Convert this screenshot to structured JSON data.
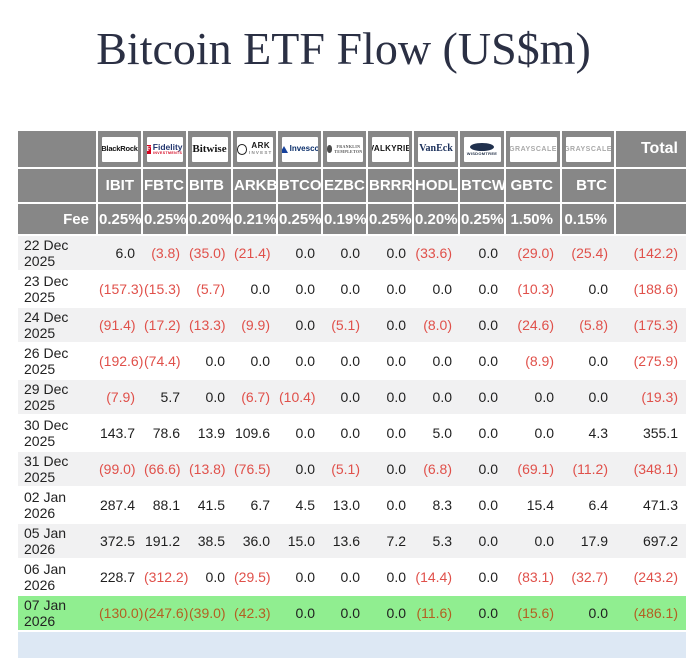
{
  "title": "Bitcoin ETF Flow (US$m)",
  "fee_label": "Fee",
  "total_label": "Total",
  "colors": {
    "header_bg": "#878787",
    "row_alt": "#f1f1f2",
    "highlight": "#90ee90",
    "negative": "#e0504a",
    "negative_hl": "#b35f22",
    "footer_strip": "#dde8f4",
    "title": "#2b3044"
  },
  "columns": [
    {
      "ticker": "IBIT",
      "fee": "0.25%",
      "issuer": "BlackRock",
      "logo": "blackrock",
      "logo_text": "BlackRock"
    },
    {
      "ticker": "FBTC",
      "fee": "0.25%",
      "issuer": "Fidelity",
      "logo": "fidelity",
      "icon": true,
      "icon_text": "F",
      "logo_text": "Fidelity",
      "logo_sub": "INVESTMENTS"
    },
    {
      "ticker": "BITB",
      "fee": "0.20%",
      "issuer": "Bitwise",
      "logo": "bitwise",
      "logo_text": "Bitwise"
    },
    {
      "ticker": "ARKB",
      "fee": "0.21%",
      "issuer": "ARK Invest",
      "logo": "ark",
      "icon": true,
      "logo_text": "ARK",
      "logo_sub": "INVEST"
    },
    {
      "ticker": "BTCO",
      "fee": "0.25%",
      "issuer": "Invesco",
      "logo": "invesco",
      "icon": true,
      "logo_text": "Invesco"
    },
    {
      "ticker": "EZBC",
      "fee": "0.19%",
      "issuer": "Franklin Templeton",
      "logo": "franklin",
      "icon": true,
      "logo_text": "FRANKLIN",
      "logo_sub": "TEMPLETON"
    },
    {
      "ticker": "BRRR",
      "fee": "0.25%",
      "issuer": "Valkyrie",
      "logo": "valkyrie",
      "logo_text": "VALKYRIE"
    },
    {
      "ticker": "HODL",
      "fee": "0.20%",
      "issuer": "VanEck",
      "logo": "vaneck",
      "logo_text": "VanEck"
    },
    {
      "ticker": "BTCW",
      "fee": "0.25%",
      "issuer": "WisdomTree",
      "logo": "wisdomtree",
      "icon": true,
      "logo_text": "WISDOMTREE"
    },
    {
      "ticker": "GBTC",
      "fee": "1.50%",
      "issuer": "Grayscale",
      "logo": "grayscale",
      "logo_text": "GRAYSCALE"
    },
    {
      "ticker": "BTC",
      "fee": "0.15%",
      "issuer": "Grayscale",
      "logo": "grayscale",
      "logo_text": "GRAYSCALE"
    }
  ],
  "rows": [
    {
      "date": "22 Dec 2025",
      "values": [
        "6.0",
        "(3.8)",
        "(35.0)",
        "(21.4)",
        "0.0",
        "0.0",
        "0.0",
        "(33.6)",
        "0.0",
        "(29.0)",
        "(25.4)"
      ],
      "total": "(142.2)"
    },
    {
      "date": "23 Dec 2025",
      "values": [
        "(157.3)",
        "(15.3)",
        "(5.7)",
        "0.0",
        "0.0",
        "0.0",
        "0.0",
        "0.0",
        "0.0",
        "(10.3)",
        "0.0"
      ],
      "total": "(188.6)"
    },
    {
      "date": "24 Dec 2025",
      "values": [
        "(91.4)",
        "(17.2)",
        "(13.3)",
        "(9.9)",
        "0.0",
        "(5.1)",
        "0.0",
        "(8.0)",
        "0.0",
        "(24.6)",
        "(5.8)"
      ],
      "total": "(175.3)"
    },
    {
      "date": "26 Dec 2025",
      "values": [
        "(192.6)",
        "(74.4)",
        "0.0",
        "0.0",
        "0.0",
        "0.0",
        "0.0",
        "0.0",
        "0.0",
        "(8.9)",
        "0.0"
      ],
      "total": "(275.9)"
    },
    {
      "date": "29 Dec 2025",
      "values": [
        "(7.9)",
        "5.7",
        "0.0",
        "(6.7)",
        "(10.4)",
        "0.0",
        "0.0",
        "0.0",
        "0.0",
        "0.0",
        "0.0"
      ],
      "total": "(19.3)"
    },
    {
      "date": "30 Dec 2025",
      "values": [
        "143.7",
        "78.6",
        "13.9",
        "109.6",
        "0.0",
        "0.0",
        "0.0",
        "5.0",
        "0.0",
        "0.0",
        "4.3"
      ],
      "total": "355.1"
    },
    {
      "date": "31 Dec 2025",
      "values": [
        "(99.0)",
        "(66.6)",
        "(13.8)",
        "(76.5)",
        "0.0",
        "(5.1)",
        "0.0",
        "(6.8)",
        "0.0",
        "(69.1)",
        "(11.2)"
      ],
      "total": "(348.1)"
    },
    {
      "date": "02 Jan 2026",
      "values": [
        "287.4",
        "88.1",
        "41.5",
        "6.7",
        "4.5",
        "13.0",
        "0.0",
        "8.3",
        "0.0",
        "15.4",
        "6.4"
      ],
      "total": "471.3"
    },
    {
      "date": "05 Jan 2026",
      "values": [
        "372.5",
        "191.2",
        "38.5",
        "36.0",
        "15.0",
        "13.6",
        "7.2",
        "5.3",
        "0.0",
        "0.0",
        "17.9"
      ],
      "total": "697.2"
    },
    {
      "date": "06 Jan 2026",
      "values": [
        "228.7",
        "(312.2)",
        "0.0",
        "(29.5)",
        "0.0",
        "0.0",
        "0.0",
        "(14.4)",
        "0.0",
        "(83.1)",
        "(32.7)"
      ],
      "total": "(243.2)"
    },
    {
      "date": "07 Jan 2026",
      "highlighted": true,
      "values": [
        "(130.0)",
        "(247.6)",
        "(39.0)",
        "(42.3)",
        "0.0",
        "0.0",
        "0.0",
        "(11.6)",
        "0.0",
        "(15.6)",
        "0.0"
      ],
      "total": "(486.1)"
    }
  ]
}
